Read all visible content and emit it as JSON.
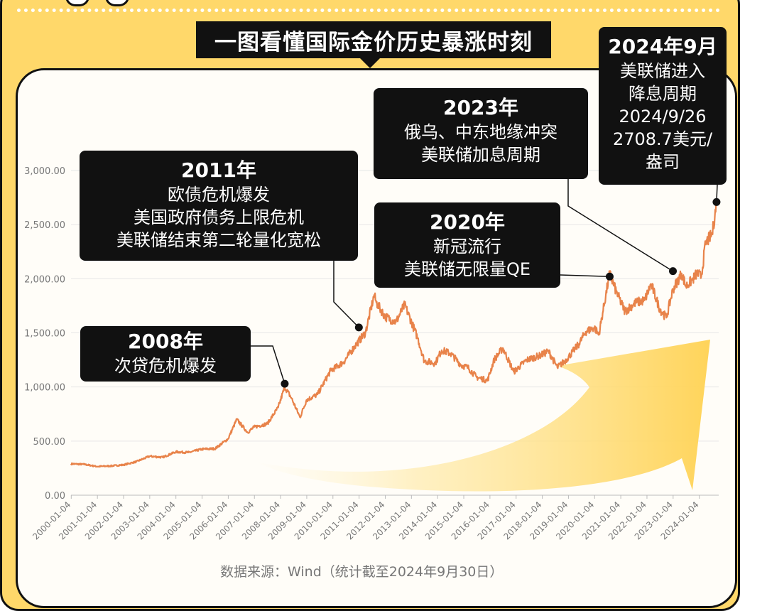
{
  "title": "一图看懂国际金价历史暴涨时刻",
  "source": "数据来源：Wind（统计截至2024年9月30日）",
  "annotations": [
    {
      "id": "a2008",
      "year": "2008年",
      "lines": [
        "次贷危机爆发"
      ]
    },
    {
      "id": "a2011",
      "year": "2011年",
      "lines": [
        "欧债危机爆发",
        "美国政府债务上限危机",
        "美联储结束第二轮量化宽松"
      ]
    },
    {
      "id": "a2020",
      "year": "2020年",
      "lines": [
        "新冠流行",
        "美联储无限量QE"
      ]
    },
    {
      "id": "a2023",
      "year": "2023年",
      "lines": [
        "俄乌、中东地缘冲突",
        "美联储加息周期"
      ]
    },
    {
      "id": "a2024",
      "year": "2024年9月",
      "lines": [
        "美联储进入",
        "降息周期",
        "2024/9/26",
        "2708.7美元/",
        "盎司"
      ]
    }
  ],
  "chart_data": {
    "type": "line",
    "title": "一图看懂国际金价历史暴涨时刻",
    "xlabel": "",
    "ylabel": "",
    "ylim": [
      0,
      3000
    ],
    "yticks": [
      "0.00",
      "500.00",
      "1,000.00",
      "1,500.00",
      "2,000.00",
      "2,500.00",
      "3,000.00"
    ],
    "ytick_values": [
      0,
      500,
      1000,
      1500,
      2000,
      2500,
      3000
    ],
    "xticks": [
      "2000-01-04",
      "2001-01-04",
      "2002-01-04",
      "2003-01-04",
      "2004-01-04",
      "2005-01-04",
      "2006-01-04",
      "2007-01-04",
      "2008-01-04",
      "2009-01-04",
      "2010-01-04",
      "2011-01-04",
      "2012-01-04",
      "2013-01-04",
      "2014-01-04",
      "2015-01-04",
      "2016-01-04",
      "2017-01-04",
      "2018-01-04",
      "2019-01-04",
      "2020-01-04",
      "2021-01-04",
      "2022-01-04",
      "2023-01-04",
      "2024-01-04"
    ],
    "grid": true,
    "line_color": "#e8834a",
    "series": [
      {
        "x": [
          "2000-01",
          "2000-07",
          "2001-01",
          "2001-07",
          "2002-01",
          "2002-07",
          "2003-01",
          "2003-07",
          "2004-01",
          "2004-07",
          "2005-01",
          "2005-07",
          "2006-01",
          "2006-05",
          "2006-10",
          "2007-01",
          "2007-07",
          "2007-12",
          "2008-03",
          "2008-06",
          "2008-10",
          "2009-01",
          "2009-06",
          "2009-12",
          "2010-06",
          "2010-12",
          "2011-04",
          "2011-08",
          "2011-09",
          "2012-01",
          "2012-06",
          "2012-10",
          "2013-04",
          "2013-07",
          "2013-12",
          "2014-03",
          "2014-07",
          "2014-12",
          "2015-03",
          "2015-07",
          "2015-12",
          "2016-03",
          "2016-07",
          "2016-12",
          "2017-06",
          "2017-12",
          "2018-04",
          "2018-08",
          "2018-12",
          "2019-06",
          "2019-09",
          "2020-01",
          "2020-03",
          "2020-08",
          "2020-11",
          "2021-03",
          "2021-08",
          "2021-12",
          "2022-03",
          "2022-07",
          "2022-10",
          "2023-01",
          "2023-05",
          "2023-07",
          "2023-10",
          "2023-12",
          "2024-02",
          "2024-04",
          "2024-07",
          "2024-09"
        ],
        "values": [
          290,
          285,
          265,
          270,
          280,
          310,
          360,
          350,
          400,
          395,
          425,
          430,
          520,
          700,
          580,
          630,
          660,
          810,
          1000,
          900,
          720,
          880,
          930,
          1150,
          1230,
          1400,
          1500,
          1850,
          1780,
          1650,
          1600,
          1760,
          1450,
          1240,
          1220,
          1340,
          1310,
          1200,
          1180,
          1090,
          1060,
          1250,
          1360,
          1140,
          1250,
          1290,
          1330,
          1180,
          1250,
          1400,
          1510,
          1550,
          1480,
          2050,
          1880,
          1700,
          1780,
          1800,
          1950,
          1720,
          1640,
          1900,
          2050,
          1930,
          1990,
          2050,
          2020,
          2330,
          2410,
          2700
        ]
      }
    ],
    "markers": [
      {
        "x": "2008-03",
        "value": 1030,
        "label_ref": "a2008"
      },
      {
        "x": "2011-01",
        "value": 1550,
        "label_ref": "a2011"
      },
      {
        "x": "2020-08",
        "value": 2020,
        "label_ref": "a2020"
      },
      {
        "x": "2023-01",
        "value": 2070,
        "label_ref": "a2023"
      },
      {
        "x": "2024-09",
        "value": 2708.7,
        "label_ref": "a2024"
      }
    ]
  }
}
